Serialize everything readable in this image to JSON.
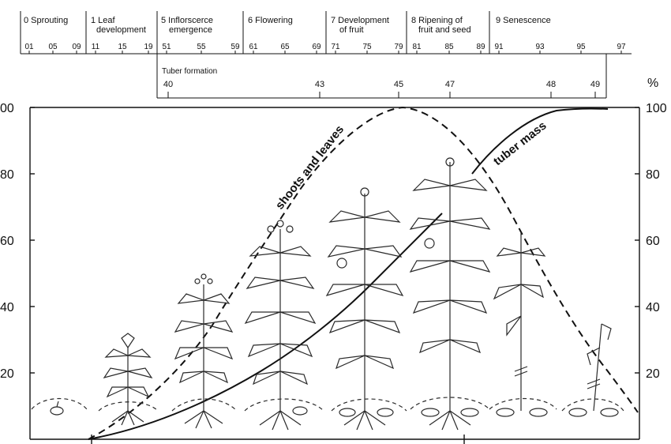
{
  "stages": [
    {
      "lines": [
        "0 Sprouting"
      ],
      "codes": [
        "01",
        "05",
        "09"
      ]
    },
    {
      "lines": [
        "1 Leaf",
        "development"
      ],
      "codes": [
        "11",
        "15",
        "19"
      ]
    },
    {
      "lines": [
        "5 Inflorscerce",
        "emergence"
      ],
      "codes": [
        "51",
        "55",
        "59"
      ]
    },
    {
      "lines": [
        "6 Flowering"
      ],
      "codes": [
        "61",
        "65",
        "69"
      ]
    },
    {
      "lines": [
        "7 Development",
        "of fruit"
      ],
      "codes": [
        "71",
        "75",
        "79"
      ]
    },
    {
      "lines": [
        "8 Ripening of",
        "fruit and seed"
      ],
      "codes": [
        "81",
        "85",
        "89"
      ]
    },
    {
      "lines": [
        "9 Senescence"
      ],
      "codes": [
        "91",
        "93",
        "95",
        "97"
      ]
    }
  ],
  "tuber_formation": {
    "title": "Tuber formation",
    "codes": [
      "40",
      "43",
      "45",
      "47",
      "48",
      "49"
    ]
  },
  "percent_symbol": "%",
  "left_axis_ticks": [
    "00",
    "80",
    "60",
    "40",
    "20"
  ],
  "right_axis_ticks": [
    "100",
    "80",
    "60",
    "40",
    "20"
  ],
  "curves": [
    {
      "name": "shoots-and-leaves",
      "label": "shoots and leaves"
    },
    {
      "name": "tuber-mass",
      "label": "tuber mass"
    }
  ],
  "colors": {
    "ink": "#111111",
    "plant": "#2a2a2a"
  }
}
